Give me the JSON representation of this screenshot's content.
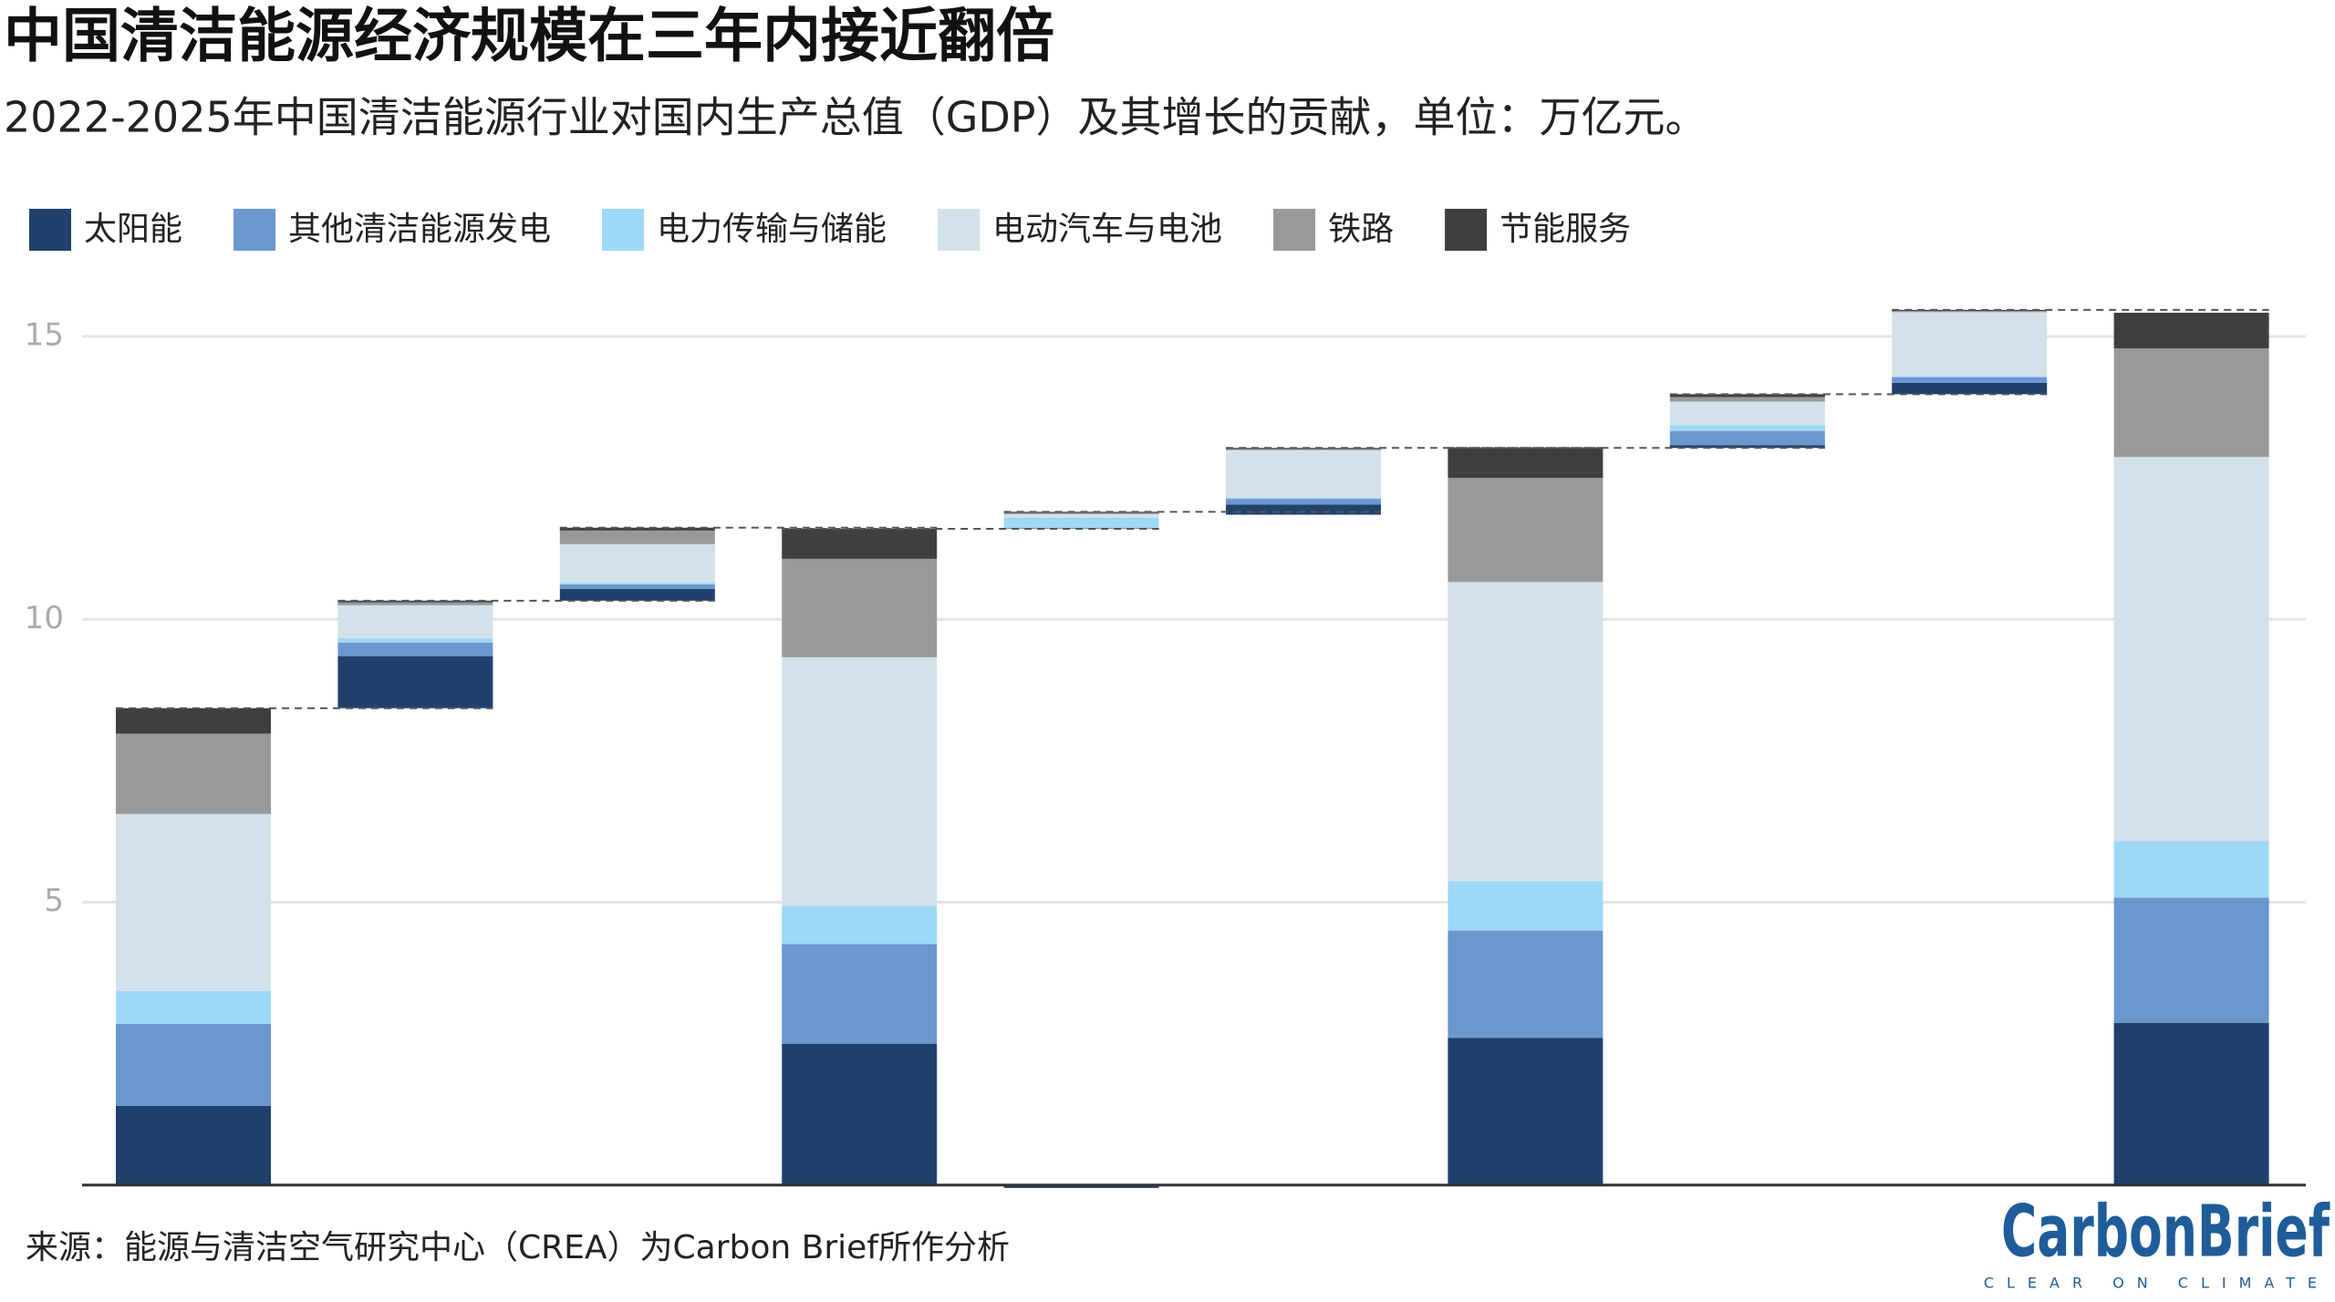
{
  "chart_data": {
    "type": "waterfall",
    "title": "中国清洁能源经济规模在三年内接近翻倍",
    "subtitle": "2022-2025年中国清洁能源行业对国内生产总值（GDP）及其增长的贡献，单位：万亿元。",
    "source": "来源：能源与清洁空气研究中心（CREA）为Carbon Brief所作分析",
    "logo": "CarbonBrief",
    "logo_tagline": "CLEAR ON CLIMATE",
    "categories": [
      null,
      null,
      null,
      null,
      null,
      null,
      null,
      null,
      null,
      null
    ],
    "series": [
      {
        "name": "太阳能",
        "color": "#1f416b",
        "values": [
          1.4,
          0.92,
          0.21,
          2.5,
          -0.05,
          0.18,
          2.6,
          0.05,
          0.2,
          2.87
        ]
      },
      {
        "name": "其他清洁能源发电",
        "color": "#6b97cf",
        "values": [
          1.45,
          0.24,
          0.08,
          1.76,
          0.02,
          0.1,
          1.9,
          0.25,
          0.1,
          2.21
        ]
      },
      {
        "name": "电力传输与储能",
        "color": "#9dd8f7",
        "values": [
          0.58,
          0.08,
          0.03,
          0.68,
          0.18,
          0.02,
          0.87,
          0.1,
          0.02,
          1.0
        ]
      },
      {
        "name": "电动汽车与电池",
        "color": "#d3e2ea",
        "values": [
          3.13,
          0.58,
          0.68,
          4.39,
          0.06,
          0.84,
          5.29,
          0.42,
          1.13,
          6.79
        ]
      },
      {
        "name": "铁路",
        "color": "#999999",
        "values": [
          1.42,
          0.05,
          0.24,
          1.74,
          0.02,
          0.02,
          1.84,
          0.08,
          0.02,
          1.92
        ]
      },
      {
        "name": "节能服务",
        "color": "#3f3f3f",
        "values": [
          0.45,
          0.03,
          0.05,
          0.53,
          0.02,
          0.02,
          0.53,
          0.05,
          0.02,
          0.63
        ]
      }
    ],
    "ylim": [
      -0.1,
      16
    ],
    "yticks": [
      5,
      10,
      15
    ],
    "grid": true
  }
}
